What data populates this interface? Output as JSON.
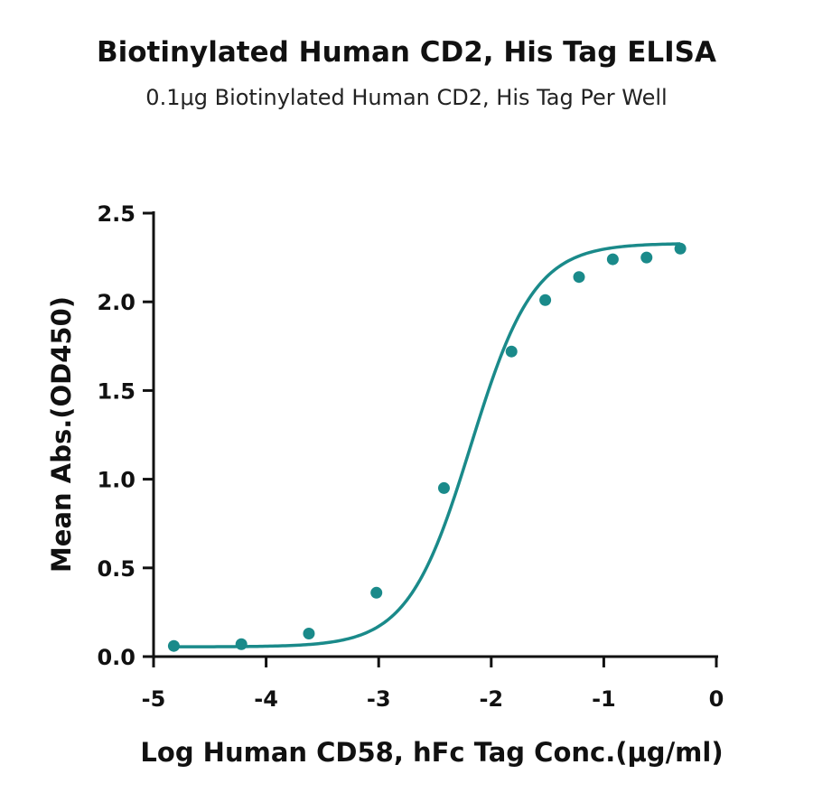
{
  "chart_data": {
    "type": "scatter",
    "title": "Biotinylated Human CD2, His Tag ELISA",
    "subtitle": "0.1μg Biotinylated Human CD2, His Tag Per Well",
    "xlabel": "Log Human CD58, hFc Tag Conc.(μg/ml)",
    "ylabel": "Mean Abs.(OD450)",
    "xlim": [
      -5,
      0
    ],
    "ylim": [
      0,
      2.5
    ],
    "xticks": [
      "-5",
      "-4",
      "-3",
      "-2",
      "-1",
      "0"
    ],
    "yticks": [
      "0.0",
      "0.5",
      "1.0",
      "1.5",
      "2.0",
      "2.5"
    ],
    "grid": false,
    "color": "#1a8a8a",
    "series": [
      {
        "x": [
          -4.82,
          -4.22,
          -3.62,
          -3.02,
          -2.42,
          -1.82,
          -1.52,
          -1.22,
          -0.92,
          -0.62,
          -0.32
        ],
        "y": [
          0.06,
          0.07,
          0.13,
          0.36,
          0.95,
          1.72,
          2.01,
          2.14,
          2.24,
          2.25,
          2.3
        ],
        "fit": "4PL sigmoid"
      }
    ]
  }
}
